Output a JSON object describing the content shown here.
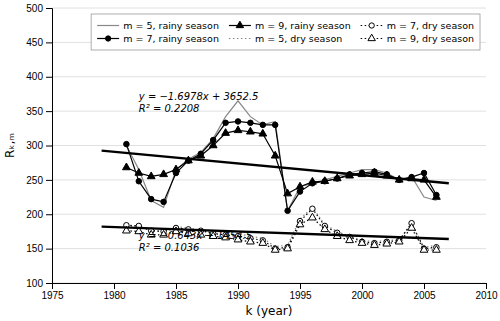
{
  "chart_data": {
    "type": "line",
    "x_label": "k (year)",
    "y_label": "Rₖ,ₘ",
    "xlim": [
      1975,
      2010
    ],
    "ylim": [
      100,
      500
    ],
    "xticks": [
      1975,
      1980,
      1985,
      1990,
      1995,
      2000,
      2005,
      2010
    ],
    "yticks": [
      100,
      150,
      200,
      250,
      300,
      350,
      400,
      450,
      500
    ],
    "grid": "y",
    "legend": "upper right",
    "series": [
      {
        "name": "m = 5, rainy season",
        "color": "#888888",
        "line_style": "solid",
        "marker": "none",
        "x": [
          1981,
          1982,
          1983,
          1984,
          1985,
          1986,
          1987,
          1988,
          1989,
          1990,
          1991,
          1992,
          1993,
          1994,
          1995,
          1996,
          1997,
          1998,
          1999,
          2000,
          2001,
          2002,
          2003,
          2004,
          2005,
          2006
        ],
        "values": [
          300,
          265,
          220,
          210,
          265,
          280,
          290,
          310,
          342,
          365,
          342,
          330,
          335,
          205,
          240,
          245,
          250,
          255,
          260,
          265,
          265,
          260,
          250,
          255,
          225,
          220
        ]
      },
      {
        "name": "m = 7, rainy season",
        "color": "black",
        "line_style": "solid",
        "marker": "filled-circle",
        "x": [
          1981,
          1982,
          1983,
          1984,
          1985,
          1986,
          1987,
          1988,
          1989,
          1990,
          1991,
          1992,
          1993,
          1994,
          1995,
          1996,
          1997,
          1998,
          1999,
          2000,
          2001,
          2002,
          2003,
          2004,
          2005,
          2006
        ],
        "values": [
          302,
          248,
          222,
          218,
          260,
          278,
          288,
          308,
          333,
          335,
          333,
          330,
          330,
          205,
          233,
          245,
          248,
          252,
          258,
          260,
          262,
          258,
          250,
          254,
          260,
          228
        ]
      },
      {
        "name": "m = 9, rainy season",
        "color": "black",
        "line_style": "solid",
        "marker": "filled-triangle",
        "x": [
          1981,
          1982,
          1983,
          1984,
          1985,
          1986,
          1987,
          1988,
          1989,
          1990,
          1991,
          1992,
          1993,
          1994,
          1995,
          1996,
          1997,
          1998,
          1999,
          2000,
          2001,
          2002,
          2003,
          2004,
          2005,
          2006
        ],
        "values": [
          268,
          260,
          255,
          258,
          265,
          278,
          285,
          300,
          318,
          322,
          320,
          317,
          285,
          230,
          240,
          247,
          248,
          252,
          256,
          258,
          260,
          256,
          250,
          252,
          250,
          225
        ]
      },
      {
        "name": "m = 5, dry season",
        "color": "#888888",
        "line_style": "dotted",
        "marker": "none",
        "x": [
          1981,
          1982,
          1983,
          1984,
          1985,
          1986,
          1987,
          1988,
          1989,
          1990,
          1991,
          1992,
          1993,
          1994,
          1995,
          1996,
          1997,
          1998,
          1999,
          2000,
          2001,
          2002,
          2003,
          2004,
          2005,
          2006
        ],
        "values": [
          183,
          183,
          176,
          175,
          182,
          180,
          177,
          175,
          174,
          172,
          168,
          165,
          153,
          155,
          193,
          210,
          185,
          175,
          168,
          162,
          160,
          162,
          163,
          185,
          152,
          155
        ]
      },
      {
        "name": "m = 7, dry season",
        "color": "black",
        "line_style": "dotted",
        "marker": "open-circle",
        "x": [
          1981,
          1982,
          1983,
          1984,
          1985,
          1986,
          1987,
          1988,
          1989,
          1990,
          1991,
          1992,
          1993,
          1994,
          1995,
          1996,
          1997,
          1998,
          1999,
          2000,
          2001,
          2002,
          2003,
          2004,
          2005,
          2006
        ],
        "values": [
          184,
          183,
          176,
          175,
          180,
          178,
          176,
          172,
          170,
          168,
          165,
          162,
          150,
          152,
          190,
          208,
          183,
          173,
          167,
          160,
          158,
          160,
          162,
          187,
          150,
          152
        ]
      },
      {
        "name": "m = 9, dry season",
        "color": "black",
        "line_style": "dotted",
        "marker": "open-triangle",
        "x": [
          1981,
          1982,
          1983,
          1984,
          1985,
          1986,
          1987,
          1988,
          1989,
          1990,
          1991,
          1992,
          1993,
          1994,
          1995,
          1996,
          1997,
          1998,
          1999,
          2000,
          2001,
          2002,
          2003,
          2004,
          2005,
          2006
        ],
        "values": [
          176,
          175,
          170,
          170,
          175,
          172,
          170,
          168,
          166,
          163,
          160,
          158,
          148,
          150,
          185,
          195,
          178,
          168,
          162,
          158,
          155,
          157,
          160,
          180,
          148,
          148
        ]
      },
      {
        "color": "black",
        "line_style": "solid",
        "marker": "none",
        "type": "trend",
        "x": [
          1979,
          2007
        ],
        "values": [
          292.5538,
          245.0154
        ]
      },
      {
        "color": "black",
        "line_style": "solid",
        "marker": "none",
        "type": "trend",
        "x": [
          1979,
          2007
        ],
        "values": [
          182.003,
          163.999
        ]
      }
    ],
    "annotations": [
      {
        "text": [
          "y = −1.6978x + 3652.5",
          "R² = 0.2208"
        ],
        "x": 1982,
        "y": 345
      },
      {
        "text": [
          "y = −0.643x + 1454.5",
          "R² = 0.1036"
        ],
        "x": 1982,
        "y": 178
      }
    ]
  }
}
